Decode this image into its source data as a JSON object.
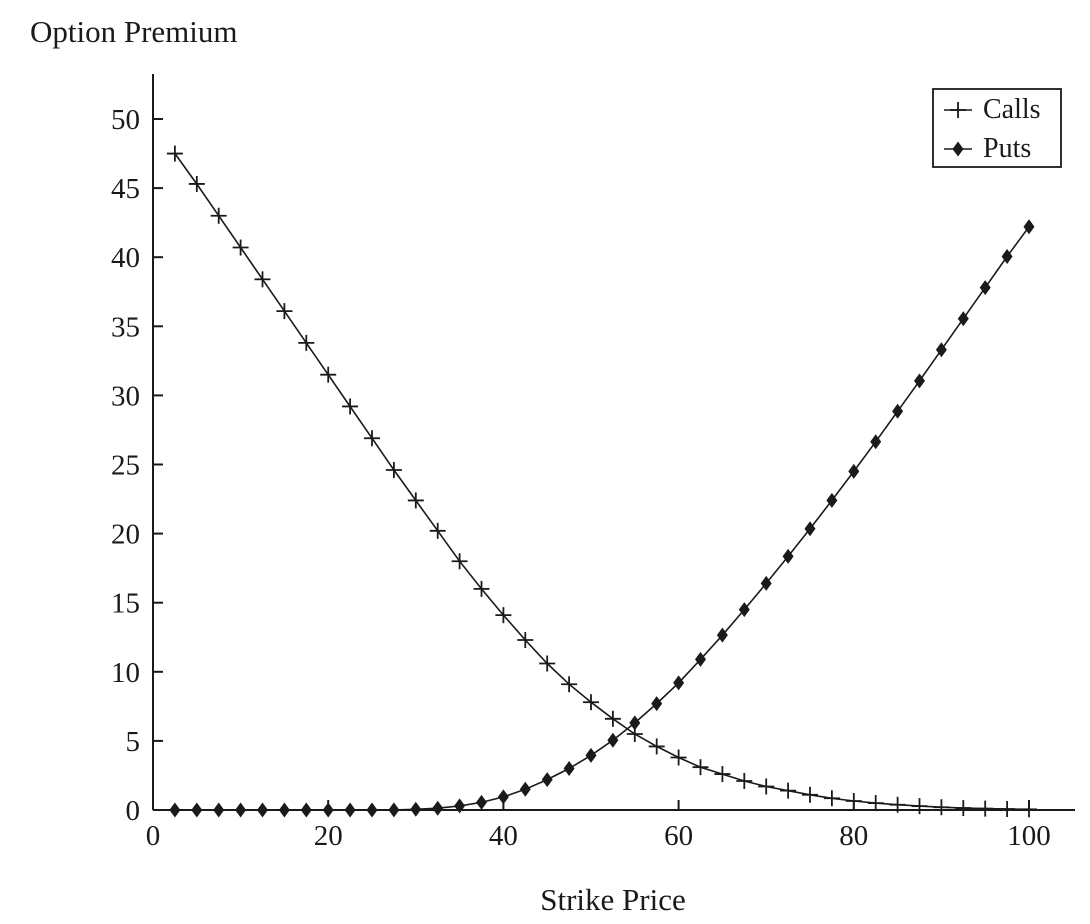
{
  "chart_data": {
    "type": "line",
    "title": "",
    "ylabel": "Option Premium",
    "xlabel": "Strike Price",
    "xlim": [
      0,
      104
    ],
    "ylim": [
      0,
      53
    ],
    "x_ticks": [
      0,
      20,
      40,
      60,
      80,
      100
    ],
    "y_ticks": [
      0,
      5,
      10,
      15,
      20,
      25,
      30,
      35,
      40,
      45,
      50
    ],
    "grid": false,
    "legend_position": "top-right",
    "x": [
      2.5,
      5,
      7.5,
      10,
      12.5,
      15,
      17.5,
      20,
      22.5,
      25,
      27.5,
      30,
      32.5,
      35,
      37.5,
      40,
      42.5,
      45,
      47.5,
      50,
      52.5,
      55,
      57.5,
      60,
      62.5,
      65,
      67.5,
      70,
      72.5,
      75,
      77.5,
      80,
      82.5,
      85,
      87.5,
      90,
      92.5,
      95,
      97.5,
      100
    ],
    "series": [
      {
        "name": "Calls",
        "marker": "plus",
        "values": [
          47.5,
          45.3,
          43.0,
          40.7,
          38.4,
          36.1,
          33.8,
          31.5,
          29.2,
          26.9,
          24.6,
          22.4,
          20.2,
          18.0,
          16.0,
          14.1,
          12.3,
          10.6,
          9.1,
          7.8,
          6.6,
          5.5,
          4.6,
          3.8,
          3.1,
          2.6,
          2.1,
          1.7,
          1.4,
          1.1,
          0.85,
          0.65,
          0.5,
          0.38,
          0.28,
          0.2,
          0.14,
          0.1,
          0.07,
          0.05
        ]
      },
      {
        "name": "Puts",
        "marker": "diamond",
        "values": [
          0,
          0,
          0,
          0,
          0,
          0,
          0,
          0,
          0,
          0,
          0.01,
          0.05,
          0.13,
          0.3,
          0.55,
          0.95,
          1.5,
          2.2,
          3.0,
          3.95,
          5.05,
          6.3,
          7.7,
          9.2,
          10.9,
          12.65,
          14.5,
          16.4,
          18.35,
          20.35,
          22.4,
          24.5,
          26.65,
          28.85,
          31.05,
          33.3,
          35.55,
          37.8,
          40.05,
          42.2
        ]
      }
    ]
  }
}
